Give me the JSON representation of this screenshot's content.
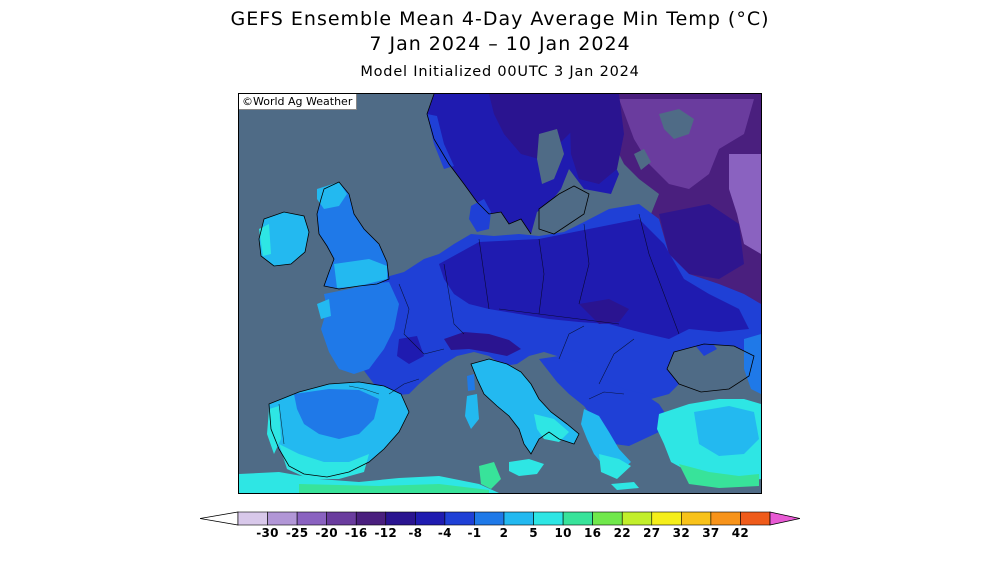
{
  "title_line1": "GEFS Ensemble Mean 4-Day Average Min Temp (°C)",
  "title_line2": "7 Jan 2024 – 10 Jan 2024",
  "subtitle": "Model Initialized 00UTC 3 Jan 2024",
  "copyright": "©World Ag Weather",
  "colors": {
    "sea": "#4f6b86",
    "scale": [
      "#d8c8ea",
      "#b196d6",
      "#8a62c0",
      "#6a3c9e",
      "#4a1f7e",
      "#2a1490",
      "#1f1bb0",
      "#1f40d6",
      "#1f79e8",
      "#23b9f0",
      "#2ee6e4",
      "#38e39a",
      "#70e84b",
      "#c2ef2b",
      "#f5ee1a",
      "#f8c21a",
      "#f7931a",
      "#ef5b1a",
      "#e01e2c",
      "#e11088",
      "#e85ad4"
    ]
  },
  "legend": {
    "ticks": [
      "-30",
      "-25",
      "-20",
      "-16",
      "-12",
      "-8",
      "-4",
      "-1",
      "2",
      "5",
      "10",
      "16",
      "22",
      "27",
      "32",
      "37",
      "42"
    ]
  }
}
